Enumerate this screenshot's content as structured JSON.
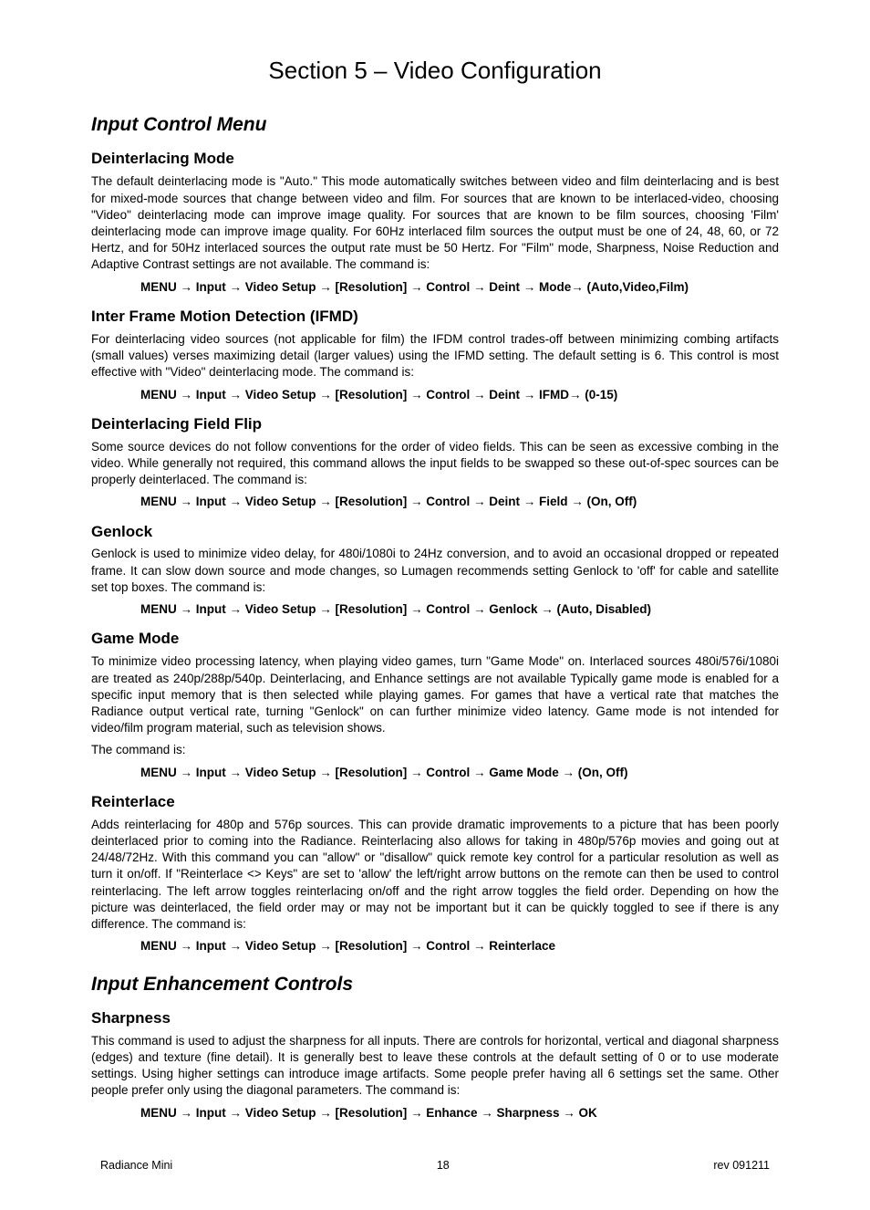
{
  "page": {
    "section_title": "Section 5 – Video Configuration",
    "footer_left": "Radiance Mini",
    "footer_center": "18",
    "footer_right": "rev 091211"
  },
  "icm": {
    "heading": "Input Control Menu",
    "deint_mode": {
      "title": "Deinterlacing Mode",
      "body": "The default deinterlacing mode is \"Auto.\" This mode automatically switches between video and film deinterlacing and is best for mixed-mode sources that change between video and film. For sources that are known to be interlaced-video, choosing \"Video\" deinterlacing mode can improve image quality. For sources that are known to be film sources, choosing 'Film' deinterlacing mode can improve image quality. For 60Hz interlaced film sources the output must be one of 24, 48, 60, or 72 Hertz, and for 50Hz interlaced sources the output rate must be 50 Hertz. For \"Film\" mode, Sharpness, Noise Reduction and Adaptive Contrast settings are not available. The command is:",
      "cmd": "MENU → Input → Video Setup → [Resolution] → Control → Deint → Mode→ (Auto,Video,Film)"
    },
    "ifmd": {
      "title": "Inter Frame Motion Detection (IFMD)",
      "body": "For deinterlacing video sources (not applicable for film) the IFDM control trades-off between minimizing combing artifacts (small values) verses maximizing detail (larger values) using the IFMD setting. The default setting is 6. This control is most effective with \"Video\" deinterlacing mode. The command is:",
      "cmd": "MENU → Input → Video Setup → [Resolution] → Control → Deint → IFMD→ (0-15)"
    },
    "field_flip": {
      "title": "Deinterlacing Field Flip",
      "body": "Some source devices do not follow conventions for the order of video fields. This can be seen as excessive combing in the video. While generally not required, this command allows the input fields to be swapped so these out-of-spec sources can be properly deinterlaced. The command is:",
      "cmd": "MENU → Input → Video Setup → [Resolution] → Control → Deint → Field → (On, Off)"
    },
    "genlock": {
      "title": "Genlock",
      "body": "Genlock is used to minimize video delay, for 480i/1080i to 24Hz conversion, and to avoid an occasional dropped or repeated frame. It can slow down source and mode changes, so Lumagen recommends setting Genlock to 'off' for cable and satellite set top boxes. The command is:",
      "cmd": "MENU → Input → Video Setup → [Resolution] → Control → Genlock → (Auto, Disabled)"
    },
    "game_mode": {
      "title": "Game Mode",
      "body": "To minimize video processing latency, when playing video games, turn \"Game Mode\" on. Interlaced sources 480i/576i/1080i are treated as 240p/288p/540p. Deinterlacing, and Enhance settings are not available Typically game mode is enabled for a specific input memory that is then selected while playing games. For games that have a vertical rate that matches the Radiance output vertical rate, turning \"Genlock\" on can further minimize video latency. Game mode is not intended for video/film program material, such as television shows.",
      "body2": "The command is:",
      "cmd": "MENU → Input → Video Setup → [Resolution] → Control → Game Mode → (On, Off)"
    },
    "reinterlace": {
      "title": "Reinterlace",
      "body": "Adds reinterlacing for 480p and 576p sources. This can provide dramatic improvements to a picture that has been poorly deinterlaced prior to coming into the Radiance. Reinterlacing also allows for taking in 480p/576p movies and going out at 24/48/72Hz. With this command you can \"allow\" or \"disallow\" quick remote key control for a particular resolution as well as turn it on/off. If \"Reinterlace <> Keys\" are set to 'allow' the left/right arrow buttons on the remote can then be used to control reinterlacing. The left arrow toggles reinterlacing on/off and the right arrow toggles the field order. Depending on how the picture was deinterlaced, the field order may or may not be important but it can be quickly toggled to see if there is any difference. The command is:",
      "cmd": "MENU → Input → Video Setup → [Resolution] → Control → Reinterlace"
    }
  },
  "iec": {
    "heading": "Input Enhancement Controls",
    "sharpness": {
      "title": "Sharpness",
      "body": "This command is used to adjust the sharpness for all inputs. There are controls for horizontal, vertical and diagonal sharpness (edges) and texture (fine detail).  It is generally best to leave these controls at the default setting of 0 or to use moderate settings. Using higher settings can introduce image artifacts.  Some people prefer having all 6 settings set the same. Other people prefer only using the diagonal parameters. The command is:",
      "cmd": "MENU → Input → Video Setup → [Resolution] → Enhance → Sharpness → OK"
    }
  }
}
